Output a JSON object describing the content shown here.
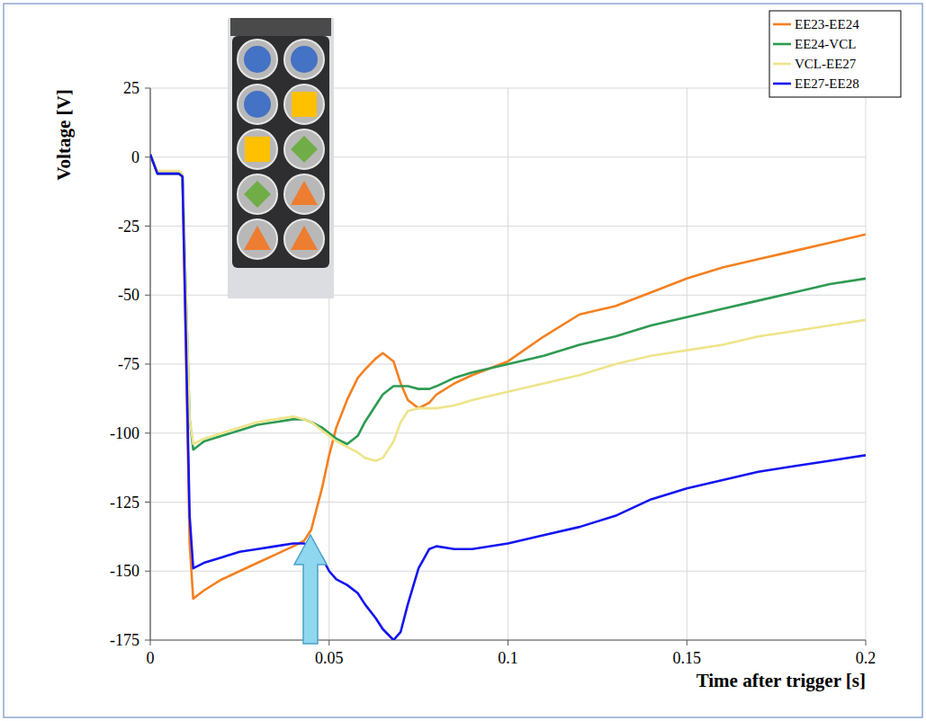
{
  "chart_data": {
    "type": "line",
    "x_label": "Time after trigger [s]",
    "y_label": "Voltage [V]",
    "x": [
      0,
      0.002,
      0.008,
      0.009,
      0.011,
      0.012,
      0.015,
      0.02,
      0.025,
      0.03,
      0.035,
      0.04,
      0.043,
      0.045,
      0.048,
      0.05,
      0.052,
      0.055,
      0.058,
      0.06,
      0.063,
      0.065,
      0.068,
      0.07,
      0.072,
      0.075,
      0.078,
      0.08,
      0.085,
      0.09,
      0.1,
      0.11,
      0.12,
      0.13,
      0.14,
      0.15,
      0.16,
      0.17,
      0.18,
      0.19,
      0.2
    ],
    "series": [
      {
        "name": "EE23-EE24",
        "color": "#f4801f",
        "values": [
          1,
          -6,
          -6,
          -7,
          -140,
          -160,
          -157,
          -153,
          -150,
          -147,
          -144,
          -141,
          -139,
          -135,
          -120,
          -108,
          -98,
          -88,
          -80,
          -77,
          -73,
          -71,
          -74,
          -82,
          -88,
          -91,
          -89,
          -86,
          -82,
          -79,
          -74,
          -65,
          -57,
          -54,
          -49,
          -44,
          -40,
          -37,
          -34,
          -31,
          -28
        ]
      },
      {
        "name": "EE24-VCL",
        "color": "#2e9a52",
        "values": [
          1,
          -6,
          -6,
          -7,
          -95,
          -106,
          -103,
          -101,
          -99,
          -97,
          -96,
          -95,
          -95,
          -96,
          -98,
          -100,
          -102,
          -104,
          -101,
          -96,
          -90,
          -86,
          -83,
          -83,
          -83,
          -84,
          -84,
          -83,
          -80,
          -78,
          -75,
          -72,
          -68,
          -65,
          -61,
          -58,
          -55,
          -52,
          -49,
          -46,
          -44
        ]
      },
      {
        "name": "VCL-EE27",
        "color": "#eee48a",
        "values": [
          1,
          -5,
          -5,
          -6,
          -95,
          -104,
          -102,
          -100,
          -98,
          -96,
          -95,
          -94,
          -95,
          -96,
          -99,
          -101,
          -103,
          -105,
          -107,
          -109,
          -110,
          -109,
          -103,
          -96,
          -92,
          -91,
          -91,
          -91,
          -90,
          -88,
          -85,
          -82,
          -79,
          -75,
          -72,
          -70,
          -68,
          -65,
          -63,
          -61,
          -59
        ]
      },
      {
        "name": "EE27-EE28",
        "color": "#1414f0",
        "values": [
          1,
          -6,
          -6,
          -7,
          -130,
          -149,
          -147,
          -145,
          -143,
          -142,
          -141,
          -140,
          -140,
          -141,
          -145,
          -150,
          -153,
          -155,
          -158,
          -162,
          -167,
          -171,
          -175,
          -172,
          -162,
          -149,
          -142,
          -141,
          -142,
          -142,
          -140,
          -137,
          -134,
          -130,
          -124,
          -120,
          -117,
          -114,
          -112,
          -110,
          -108
        ]
      }
    ],
    "xlim": [
      0,
      0.2
    ],
    "xticks": [
      0,
      0.05,
      0.1,
      0.15,
      0.2
    ],
    "ylim": [
      -175,
      25
    ],
    "yticks": [
      25,
      0,
      -25,
      -50,
      -75,
      -100,
      -125,
      -150,
      -175
    ],
    "grid": true,
    "legend": "upper right"
  }
}
